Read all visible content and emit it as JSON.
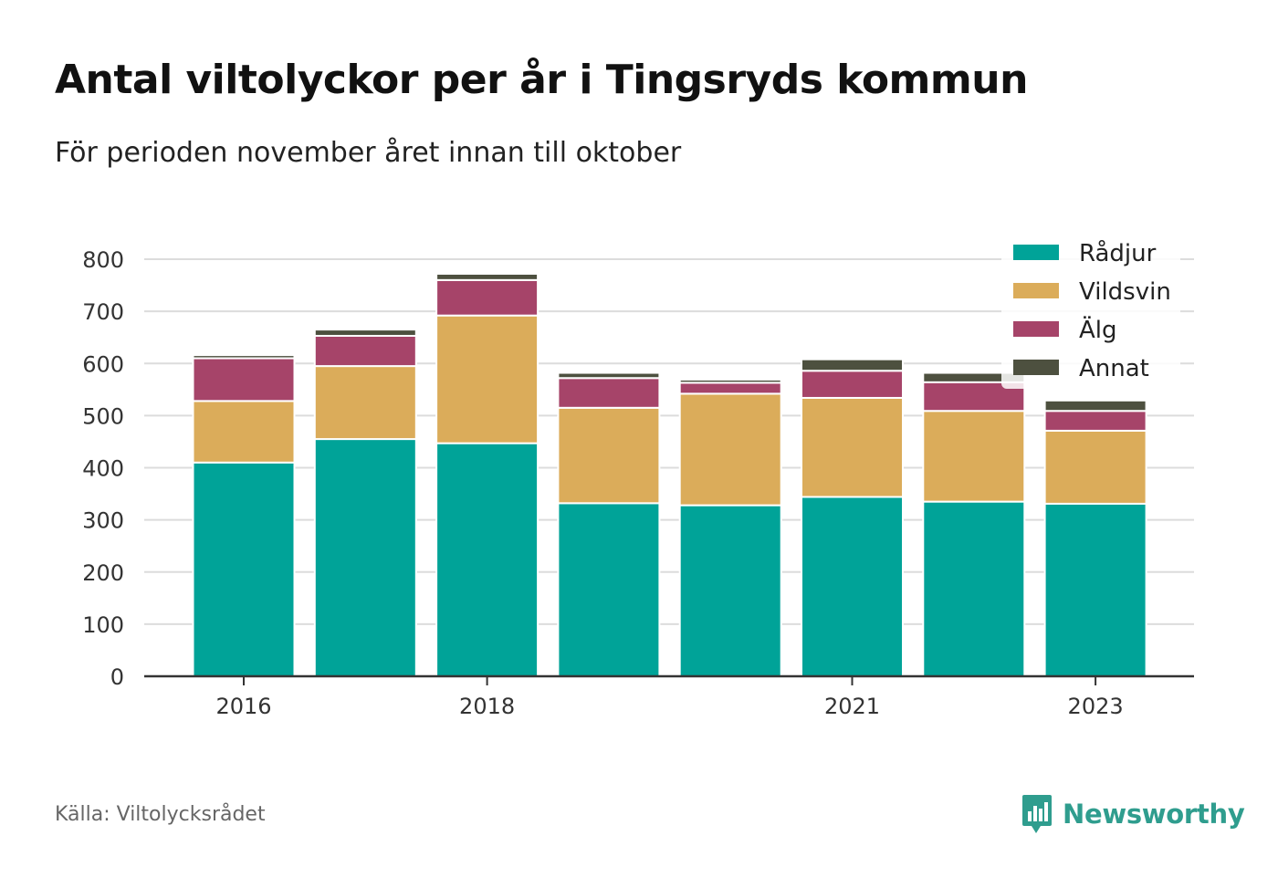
{
  "title": "Antal viltolyckor per år i Tingsryds kommun",
  "subtitle": "För perioden november året innan till oktober",
  "source": "Källa: Viltolycksrådet",
  "brand": {
    "name": "Newsworthy",
    "icon": "newsworthy-logo-icon",
    "color": "#2f9d8e"
  },
  "chart_data": {
    "type": "bar",
    "stacked": true,
    "categories": [
      2016,
      2017,
      2018,
      2019,
      2020,
      2021,
      2022,
      2023
    ],
    "x_tick_labels": [
      "2016",
      "",
      "2018",
      "",
      "",
      "2021",
      "",
      "2023"
    ],
    "series": [
      {
        "name": "Rådjur",
        "color": "#00a398",
        "values": [
          410,
          455,
          447,
          332,
          328,
          344,
          335,
          331
        ]
      },
      {
        "name": "Vildsvin",
        "color": "#dbac5a",
        "values": [
          118,
          140,
          245,
          183,
          214,
          190,
          174,
          140
        ]
      },
      {
        "name": "Älg",
        "color": "#a64469",
        "values": [
          82,
          58,
          68,
          57,
          21,
          52,
          55,
          38
        ]
      },
      {
        "name": "Annat",
        "color": "#4d503f",
        "values": [
          6,
          12,
          12,
          10,
          6,
          22,
          18,
          20
        ]
      }
    ],
    "ylim": [
      0,
      800
    ],
    "yticks": [
      0,
      100,
      200,
      300,
      400,
      500,
      600,
      700,
      800
    ],
    "xlabel": "",
    "ylabel": "",
    "grid": true,
    "legend": "top-right"
  }
}
